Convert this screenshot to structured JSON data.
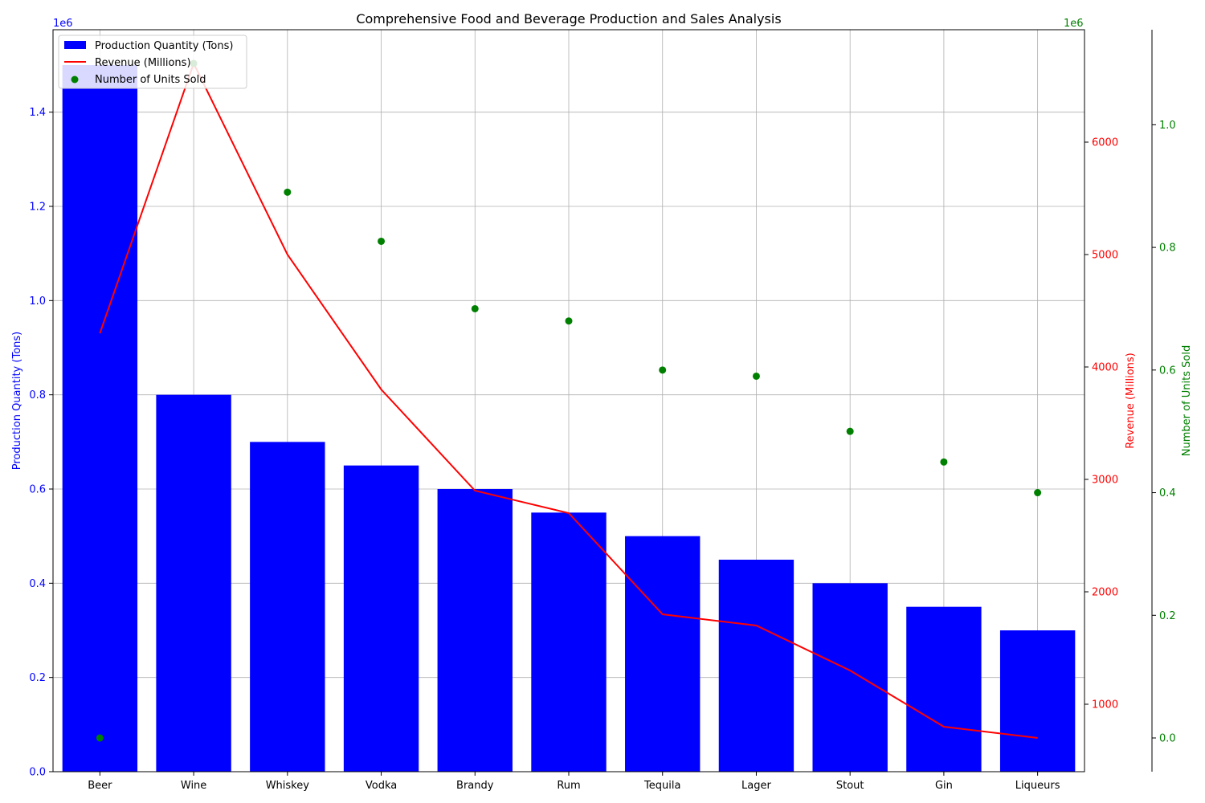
{
  "chart_data": {
    "type": "bar",
    "title": "Comprehensive Food and Beverage Production and Sales Analysis",
    "categories": [
      "Beer",
      "Wine",
      "Whiskey",
      "Vodka",
      "Brandy",
      "Rum",
      "Tequila",
      "Lager",
      "Stout",
      "Gin",
      "Liqueurs"
    ],
    "series": [
      {
        "name": "Production Quantity (Tons)",
        "kind": "bar",
        "axis": "left",
        "color": "#0000ff",
        "values": [
          1500000,
          800000,
          700000,
          650000,
          600000,
          550000,
          500000,
          450000,
          400000,
          350000,
          300000
        ]
      },
      {
        "name": "Revenue (Millions)",
        "kind": "line",
        "axis": "right",
        "color": "#ff0000",
        "values": [
          4300000000,
          6700000000,
          5000000000,
          3800000000,
          2900000000,
          2700000000,
          1800000000,
          1700000000,
          1300000000,
          800000000,
          700000000
        ]
      },
      {
        "name": "Number of Units Sold",
        "kind": "scatter",
        "axis": "right2",
        "color": "#008000",
        "values": [
          0,
          1100000,
          890000,
          810000,
          700000,
          680000,
          600000,
          590000,
          500000,
          450000,
          400000
        ]
      }
    ],
    "axes": {
      "left": {
        "label": "Production Quantity (Tons)",
        "offset_text": "1e6",
        "color": "#0000ff",
        "range": [
          0,
          1.575
        ],
        "ticks": [
          0.0,
          0.2,
          0.4,
          0.6,
          0.8,
          1.0,
          1.2,
          1.4
        ],
        "tick_labels": [
          "0.0",
          "0.2",
          "0.4",
          "0.6",
          "0.8",
          "1.0",
          "1.2",
          "1.4"
        ]
      },
      "right": {
        "label": "Revenue (Millions)",
        "offset_text": "1e6",
        "color": "#ff0000",
        "range": [
          400,
          7000
        ],
        "ticks": [
          1000,
          2000,
          3000,
          4000,
          5000,
          6000
        ],
        "tick_labels": [
          "1000",
          "2000",
          "3000",
          "4000",
          "5000",
          "6000"
        ]
      },
      "right2": {
        "label": "Number of Units Sold",
        "offset_text": "1e6",
        "color": "#008000",
        "range": [
          -0.055,
          1.155
        ],
        "ticks": [
          0.0,
          0.2,
          0.4,
          0.6,
          0.8,
          1.0
        ],
        "tick_labels": [
          "0.0",
          "0.2",
          "0.4",
          "0.6",
          "0.8",
          "1.0"
        ]
      }
    },
    "grid": true,
    "legend_position": "upper-left"
  }
}
